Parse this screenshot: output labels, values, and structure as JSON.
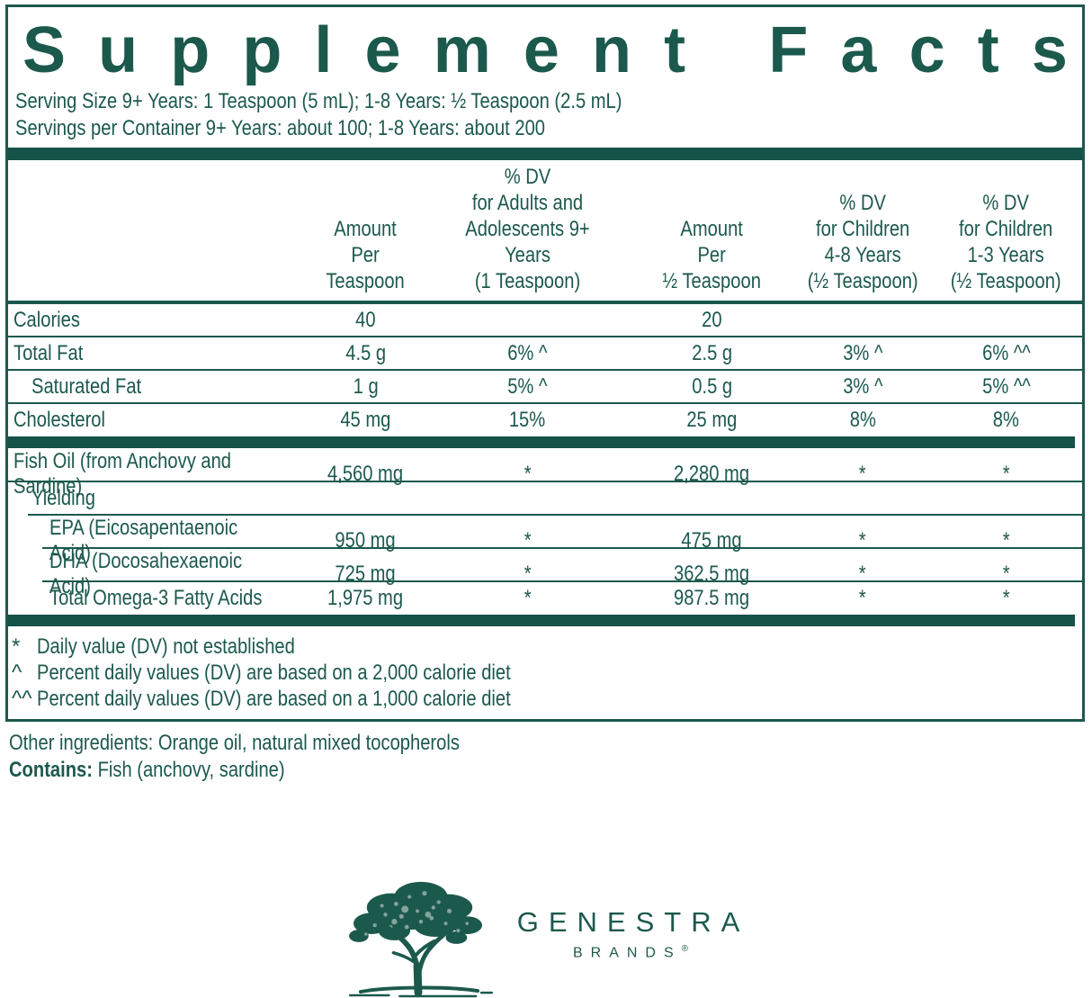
{
  "colors": {
    "teal": "#1c594d",
    "bar": "#155247"
  },
  "title": "Supplement Facts",
  "serving": {
    "size": "Serving Size 9+ Years: 1 Teaspoon (5 mL); 1-8 Years: ½ Teaspoon (2.5 mL)",
    "per_container": "Servings per Container 9+ Years: about 100; 1-8 Years: about 200"
  },
  "table": {
    "headers": [
      [],
      [
        "Amount",
        "Per",
        "Teaspoon"
      ],
      [
        "% DV",
        "for Adults and",
        "Adolescents 9+ Years",
        "(1 Teaspoon)"
      ],
      [
        "Amount",
        "Per",
        "½ Teaspoon"
      ],
      [
        "% DV",
        "for Children",
        "4-8 Years",
        "(½ Teaspoon)"
      ],
      [
        "% DV",
        "for Children",
        "1-3 Years",
        "(½ Teaspoon)"
      ]
    ],
    "rows": [
      {
        "label": "Calories",
        "indent": 0,
        "values": [
          "40",
          "",
          "20",
          "",
          ""
        ],
        "sep": "thin",
        "sep_indent": 0
      },
      {
        "label": "Total Fat",
        "indent": 0,
        "values": [
          "4.5 g",
          "6% ^",
          "2.5 g",
          "3% ^",
          "6% ^^"
        ],
        "sep": "thin",
        "sep_indent": 0
      },
      {
        "label": "Saturated Fat",
        "indent": 1,
        "values": [
          "1 g",
          "5% ^",
          "0.5 g",
          "3% ^",
          "5% ^^"
        ],
        "sep": "thin",
        "sep_indent": 0
      },
      {
        "label": "Cholesterol",
        "indent": 0,
        "values": [
          "45 mg",
          "15%",
          "25 mg",
          "8%",
          "8%"
        ],
        "sep": "bar",
        "sep_indent": 0
      },
      {
        "label": "Fish Oil (from Anchovy and Sardine)",
        "indent": 0,
        "values": [
          "4,560 mg",
          "*",
          "2,280 mg",
          "*",
          "*"
        ],
        "sep": "thin",
        "sep_indent": 0
      },
      {
        "label": "Yielding",
        "indent": 1,
        "values": [
          "",
          "",
          "",
          "",
          ""
        ],
        "sep": "thin",
        "sep_indent": 22
      },
      {
        "label": "EPA (Eicosapentaenoic Acid)",
        "indent": 2,
        "values": [
          "950 mg",
          "*",
          "475 mg",
          "*",
          "*"
        ],
        "sep": "thin",
        "sep_indent": 38
      },
      {
        "label": "DHA (Docosahexaenoic Acid)",
        "indent": 2,
        "values": [
          "725 mg",
          "*",
          "362.5 mg",
          "*",
          "*"
        ],
        "sep": "thin",
        "sep_indent": 38
      },
      {
        "label": "Total Omega-3 Fatty Acids",
        "indent": 2,
        "values": [
          "1,975 mg",
          "*",
          "987.5 mg",
          "*",
          "*"
        ],
        "sep": "bar",
        "sep_indent": 0
      }
    ]
  },
  "footnotes": [
    {
      "marker": "*",
      "text": "Daily value (DV) not established"
    },
    {
      "marker": "^",
      "text": "Percent daily values (DV) are based on a 2,000 calorie diet"
    },
    {
      "marker": "^^",
      "text": "Percent daily values (DV) are based on a 1,000 calorie diet"
    }
  ],
  "other_ingredients": "Other ingredients: Orange oil, natural mixed tocopherols",
  "contains": {
    "label": "Contains:",
    "value": " Fish (anchovy, sardine)"
  },
  "logo": {
    "brand": "GENESTRA",
    "sub": "BRANDS",
    "registered": "®"
  }
}
